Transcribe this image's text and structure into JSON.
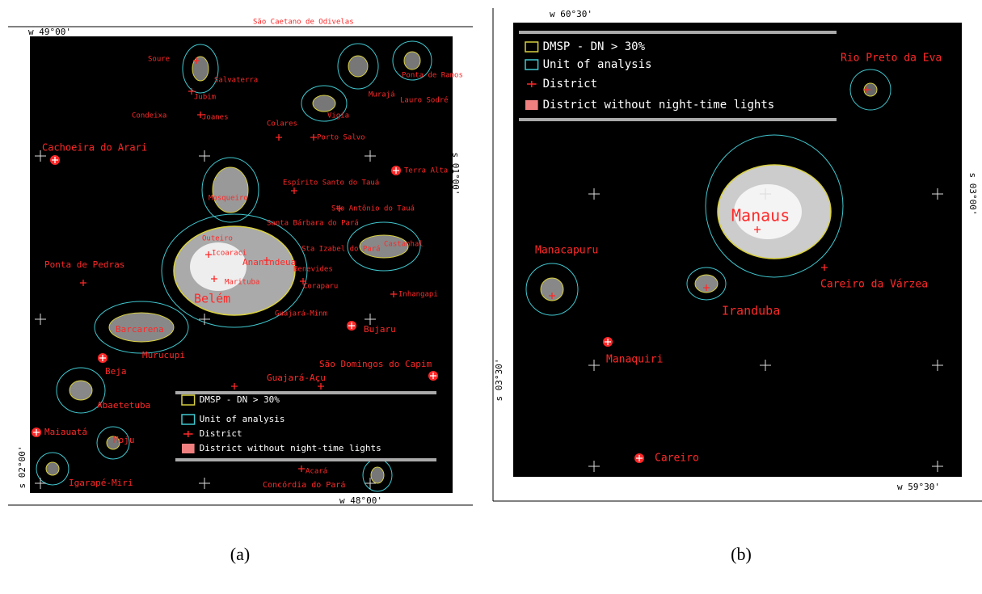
{
  "panels": [
    {
      "caption": "(a)",
      "coords": [
        "w 49°00'",
        "w 48°00'",
        "s 01°00'",
        "s 02°00'"
      ],
      "legend": [
        "DMSP  -  DN > 30%",
        "Unit of analysis",
        "District",
        "District without night-time lights"
      ],
      "places": [
        "São Caetano de Odivelas",
        "Soure",
        "Salvaterra",
        "Jubim",
        "Condeixa",
        "Joanes",
        "Colares",
        "Porto Salvo",
        "Cachoeira do Arari",
        "Vigia",
        "Murajá",
        "Ponta de Ramos",
        "Lauro Sodré",
        "Terra Alta",
        "Espírito Santo do Tauá",
        "Mosqueiro",
        "Sto Antônio do Tauá",
        "Santa Bárbara do Pará",
        "Outeiro",
        "Icoaraci",
        "Ananindeua",
        "Castanhal",
        "Sta Izabel do Pará",
        "Benevides",
        "Marituba",
        "Belém",
        "Ponta de Pedras",
        "Coraparu",
        "Inhangapi",
        "Guajará-Minm",
        "Bujaru",
        "Barcarena",
        "Murucupi",
        "Beja",
        "São Domingos do Capim",
        "Guajará-Açu",
        "Abaetetuba",
        "Moju",
        "Maiauatá",
        "Igarapé-Miri",
        "Acará",
        "Concórdia do Pará"
      ]
    },
    {
      "caption": "(b)",
      "coords": [
        "w 60°30'",
        "w 59°30'",
        "s 03°00'",
        "s 03°30'"
      ],
      "legend": [
        "DMSP  -  DN  > 30%",
        "Unit of analysis",
        "District",
        "District without night-time lights"
      ],
      "places": [
        "Rio Preto da Eva",
        "Manaus",
        "Manacapuru",
        "Careiro da Várzea",
        "Iranduba",
        "Manaquiri",
        "Careiro"
      ]
    }
  ]
}
